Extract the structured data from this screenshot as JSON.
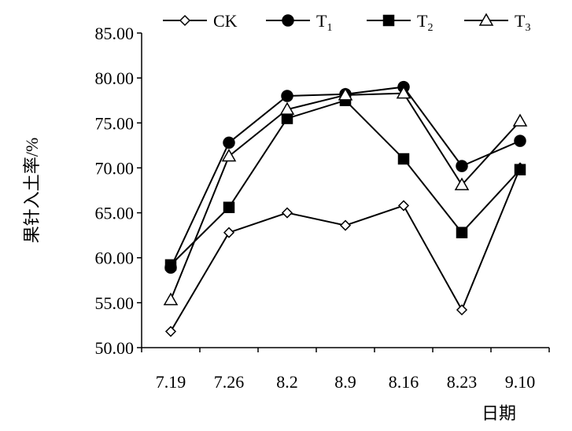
{
  "chart_data": {
    "type": "line",
    "categories": [
      "7.19",
      "7.26",
      "8.2",
      "8.9",
      "8.16",
      "8.23",
      "9.10"
    ],
    "xlabel": "日期",
    "ylabel": "果针入土率/%",
    "ylim": [
      50,
      85
    ],
    "yticks": [
      "50.00",
      "55.00",
      "60.00",
      "65.00",
      "70.00",
      "75.00",
      "80.00",
      "85.00"
    ],
    "grid": false,
    "legend_position": "top",
    "series": [
      {
        "name": "CK",
        "name_base": "CK",
        "name_sub": "",
        "marker": "diamond-open",
        "values": [
          51.8,
          62.8,
          65.0,
          63.6,
          65.8,
          54.2,
          70.0
        ]
      },
      {
        "name": "T1",
        "name_base": "T",
        "name_sub": "1",
        "marker": "circle-filled",
        "values": [
          58.9,
          72.8,
          78.0,
          78.2,
          79.0,
          70.2,
          73.0
        ]
      },
      {
        "name": "T2",
        "name_base": "T",
        "name_sub": "2",
        "marker": "square-filled",
        "values": [
          59.2,
          65.6,
          75.5,
          77.5,
          71.0,
          62.8,
          69.8
        ]
      },
      {
        "name": "T3",
        "name_base": "T",
        "name_sub": "3",
        "marker": "triangle-open",
        "values": [
          55.3,
          71.3,
          76.5,
          78.1,
          78.3,
          68.1,
          75.2
        ]
      }
    ]
  }
}
